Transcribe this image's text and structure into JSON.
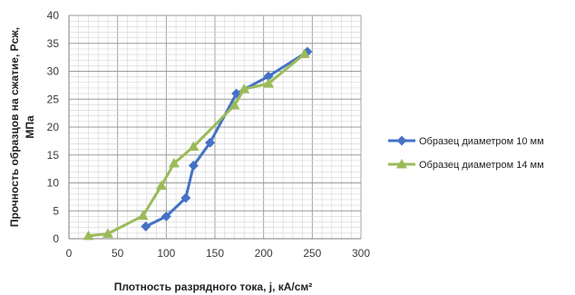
{
  "chart_data": {
    "type": "line",
    "xlabel": "Плотность разрядного тока, j, кА/см²",
    "ylabel_line1": "Прочность образцов на сжатие, Рсж,",
    "ylabel_line2": "МПа",
    "xlim": [
      0,
      300
    ],
    "ylim": [
      0,
      40
    ],
    "x_ticks": [
      "0",
      "50",
      "100",
      "150",
      "200",
      "250",
      "300"
    ],
    "y_ticks": [
      "0",
      "5",
      "10",
      "15",
      "20",
      "25",
      "30",
      "35",
      "40"
    ],
    "grid": true,
    "legend_position": "right",
    "series": [
      {
        "name": "Образец диаметром 10 мм",
        "color": "#4472C4",
        "marker": "diamond",
        "points": [
          [
            79,
            2.2
          ],
          [
            100,
            4.0
          ],
          [
            120,
            7.3
          ],
          [
            128,
            13.1
          ],
          [
            145,
            17.2
          ],
          [
            172,
            26.0
          ],
          [
            205,
            29.1
          ],
          [
            245,
            33.5
          ]
        ]
      },
      {
        "name": "Образец диаметром 14 мм",
        "color": "#9BBB59",
        "marker": "triangle",
        "points": [
          [
            20,
            0.5
          ],
          [
            40,
            0.9
          ],
          [
            76,
            4.1
          ],
          [
            95,
            9.5
          ],
          [
            108,
            13.5
          ],
          [
            128,
            16.5
          ],
          [
            170,
            23.9
          ],
          [
            180,
            26.8
          ],
          [
            205,
            27.8
          ],
          [
            242,
            33.1
          ]
        ]
      }
    ]
  }
}
